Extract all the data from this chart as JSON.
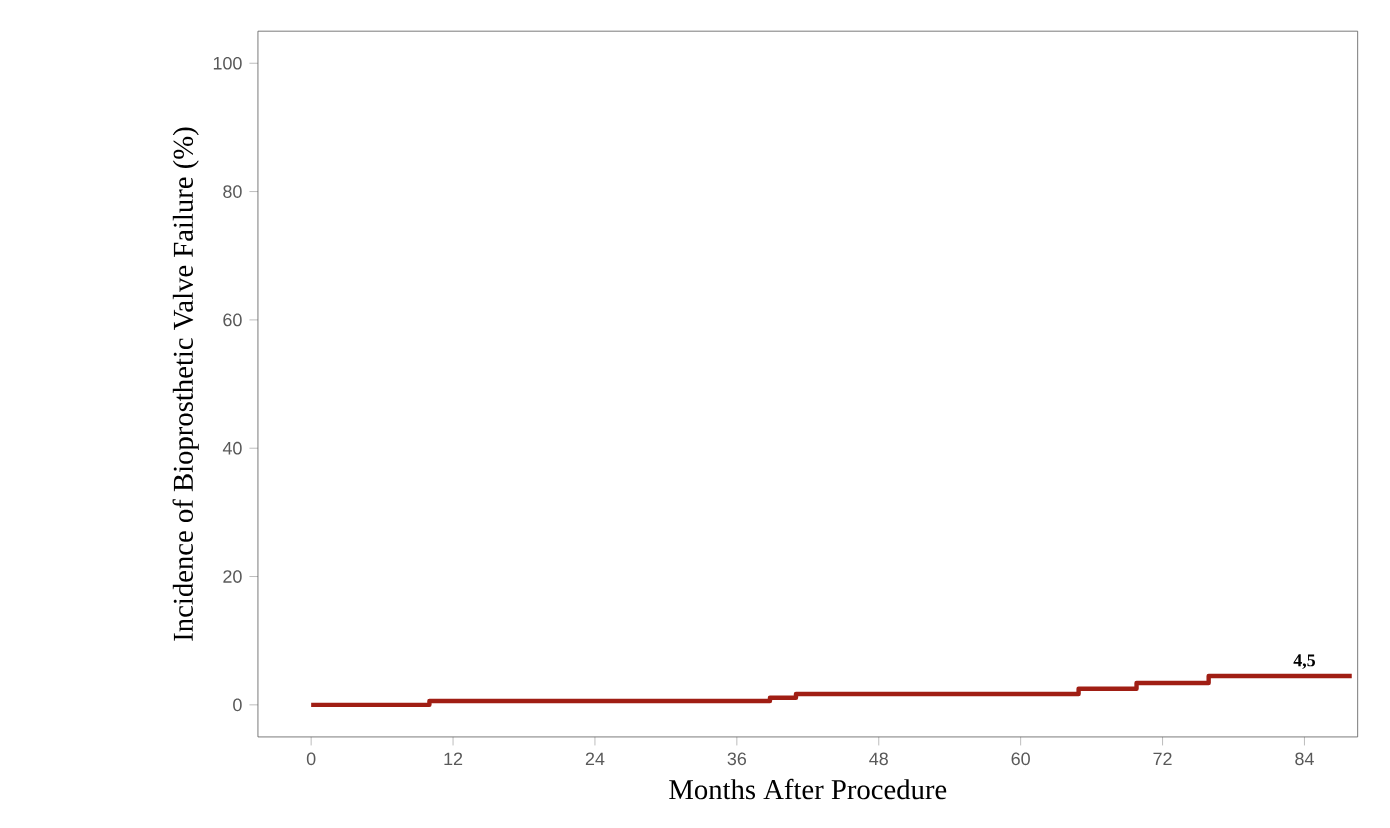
{
  "chart_data": {
    "type": "step",
    "xlabel": "Months After Procedure",
    "ylabel": "Incidence of Bioprosthetic Valve Failure (%)",
    "x": [
      0,
      10,
      38.8,
      41,
      64.9,
      69.8,
      75.9,
      88
    ],
    "series": [
      {
        "color": "#a01e14",
        "values": [
          0,
          0.6,
          1.1,
          1.7,
          2.5,
          3.4,
          4.5,
          4.5
        ]
      }
    ],
    "xlim": [
      -4.5,
      88.5
    ],
    "ylim": [
      -5,
      105
    ],
    "xticks": [
      0,
      12,
      24,
      36,
      48,
      60,
      72,
      84
    ],
    "yticks": [
      0,
      20,
      40,
      60,
      80,
      100
    ],
    "annotations": [
      {
        "text": "4,5",
        "x": 84,
        "y": 4.5
      }
    ],
    "grid": false
  }
}
